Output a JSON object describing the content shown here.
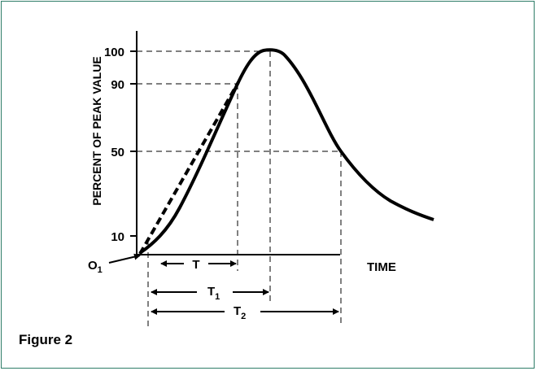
{
  "figure": {
    "caption": "Figure 2",
    "border_color": "#2e7d68"
  },
  "axes": {
    "ylabel": "PERCENT OF PEAK VALUE",
    "xlabel": "TIME",
    "ticks": [
      "100",
      "90",
      "50",
      "10"
    ]
  },
  "labels": {
    "origin_main": "O",
    "origin_sub": "1",
    "t": "T",
    "t1_main": "T",
    "t1_sub": "1",
    "t2_main": "T",
    "t2_sub": "2"
  }
}
